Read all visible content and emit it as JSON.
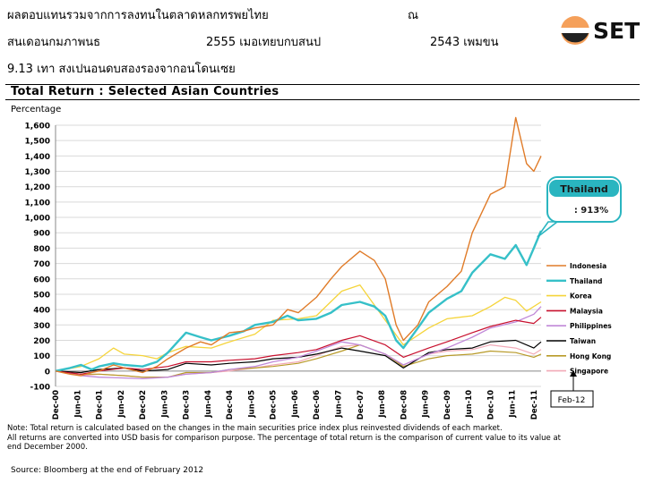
{
  "header": {
    "line1_left": "ผลตอบแทนรวมจากการลงทนในตลาดหลกทรพยไทย",
    "line1_right": "ณ",
    "line2_left": "สนเดอนกมภาพนธ",
    "line2_mid": "2555 เมอเทยบกบสนป",
    "line2_right": "2543 เพมขน",
    "line3": "9.13 เทา   สงเปนอนดบสองรองจากอนโดนเซย"
  },
  "logo": {
    "text": "SET",
    "color": "#f5a05a"
  },
  "section_title": "Total Return : Selected Asian Countries",
  "notes": {
    "line1": "Note: Total return is calculated based on the changes in the main securities price index plus reinvested dividends of each market.",
    "line2": "All returns are converted into USD basis for comparison purpose. The percentage of total return is the comparison of current value to its value at",
    "line3": "end December 2000.",
    "source": "Source: Bloomberg at the end of February 2012"
  },
  "chart_data": {
    "type": "line",
    "ylabel": "Percentage",
    "ylim": [
      -100,
      1600
    ],
    "yticks": [
      -100,
      0,
      100,
      200,
      300,
      400,
      500,
      600,
      700,
      800,
      900,
      1000,
      1100,
      1200,
      1300,
      1400,
      1500,
      1600
    ],
    "ytick_labels": [
      "-100",
      "0",
      "100",
      "200",
      "300",
      "400",
      "500",
      "600",
      "700",
      "800",
      "900",
      "1,000",
      "1,100",
      "1,200",
      "1,300",
      "1,400",
      "1,500",
      "1,600"
    ],
    "x_start": 2000.917,
    "x_end": 2012.083,
    "xtick_labels": [
      "Dec-00",
      "Jun-01",
      "Dec-01",
      "Jun-02",
      "Dec-02",
      "Jun-03",
      "Dec-03",
      "Jun-04",
      "Dec-04",
      "Jun-05",
      "Dec-05",
      "Jun-06",
      "Dec-06",
      "Jun-07",
      "Dec-07",
      "Jun-08",
      "Dec-08",
      "Jun-09",
      "Dec-09",
      "Jun-10",
      "Dec-10",
      "Jun-11",
      "Dec-11"
    ],
    "xtick_values": [
      2000.917,
      2001.417,
      2001.917,
      2002.417,
      2002.917,
      2003.417,
      2003.917,
      2004.417,
      2004.917,
      2005.417,
      2005.917,
      2006.417,
      2006.917,
      2007.417,
      2007.917,
      2008.417,
      2008.917,
      2009.417,
      2009.917,
      2010.417,
      2010.917,
      2011.417,
      2011.917
    ],
    "grid": true,
    "legend_position": "right",
    "series": [
      {
        "name": "Indonesia",
        "color": "#e07b28",
        "width": 1.4,
        "x": [
          2000.917,
          2001.25,
          2001.5,
          2001.75,
          2001.917,
          2002.25,
          2002.5,
          2002.917,
          2003.25,
          2003.5,
          2003.917,
          2004.25,
          2004.5,
          2004.917,
          2005.25,
          2005.5,
          2005.917,
          2006.25,
          2006.5,
          2006.917,
          2007.25,
          2007.5,
          2007.917,
          2008.25,
          2008.5,
          2008.75,
          2008.917,
          2009.25,
          2009.5,
          2009.917,
          2010.25,
          2010.5,
          2010.917,
          2011.25,
          2011.5,
          2011.75,
          2011.917,
          2012.083
        ],
        "y": [
          0,
          -20,
          -30,
          -10,
          0,
          40,
          20,
          -10,
          30,
          80,
          150,
          190,
          170,
          250,
          260,
          280,
          300,
          400,
          380,
          480,
          600,
          680,
          780,
          720,
          600,
          300,
          200,
          300,
          450,
          550,
          650,
          900,
          1150,
          1200,
          1650,
          1350,
          1300,
          1400
        ]
      },
      {
        "name": "Thailand",
        "color": "#36c0c8",
        "width": 2.4,
        "x": [
          2000.917,
          2001.25,
          2001.5,
          2001.75,
          2001.917,
          2002.25,
          2002.5,
          2002.917,
          2003.25,
          2003.5,
          2003.917,
          2004.25,
          2004.5,
          2004.917,
          2005.25,
          2005.5,
          2005.917,
          2006.25,
          2006.5,
          2006.917,
          2007.25,
          2007.5,
          2007.917,
          2008.25,
          2008.5,
          2008.75,
          2008.917,
          2009.25,
          2009.5,
          2009.917,
          2010.25,
          2010.5,
          2010.917,
          2011.25,
          2011.5,
          2011.75,
          2011.917,
          2012.083
        ],
        "y": [
          0,
          20,
          40,
          10,
          30,
          50,
          40,
          30,
          60,
          120,
          250,
          220,
          200,
          230,
          260,
          300,
          320,
          360,
          330,
          340,
          380,
          430,
          450,
          420,
          360,
          200,
          150,
          280,
          380,
          470,
          520,
          640,
          760,
          730,
          820,
          690,
          800,
          913
        ]
      },
      {
        "name": "Korea",
        "color": "#f5d43a",
        "width": 1.3,
        "x": [
          2000.917,
          2001.5,
          2001.917,
          2002.25,
          2002.5,
          2002.917,
          2003.25,
          2003.5,
          2003.917,
          2004.5,
          2004.917,
          2005.5,
          2005.917,
          2006.5,
          2006.917,
          2007.5,
          2007.917,
          2008.5,
          2008.917,
          2009.5,
          2009.917,
          2010.5,
          2010.917,
          2011.25,
          2011.5,
          2011.75,
          2012.083
        ],
        "y": [
          0,
          30,
          80,
          150,
          110,
          100,
          80,
          120,
          160,
          150,
          190,
          240,
          330,
          340,
          360,
          520,
          560,
          330,
          170,
          280,
          340,
          360,
          420,
          480,
          460,
          390,
          450
        ]
      },
      {
        "name": "Malaysia",
        "color": "#c8102e",
        "width": 1.2,
        "x": [
          2000.917,
          2001.5,
          2001.917,
          2002.5,
          2002.917,
          2003.5,
          2003.917,
          2004.5,
          2004.917,
          2005.5,
          2005.917,
          2006.5,
          2006.917,
          2007.5,
          2007.917,
          2008.5,
          2008.917,
          2009.5,
          2009.917,
          2010.5,
          2010.917,
          2011.5,
          2011.917,
          2012.083
        ],
        "y": [
          0,
          -20,
          0,
          20,
          10,
          30,
          60,
          60,
          70,
          80,
          100,
          120,
          140,
          200,
          230,
          170,
          90,
          150,
          190,
          250,
          290,
          330,
          310,
          350
        ]
      },
      {
        "name": "Philippines",
        "color": "#c088d8",
        "width": 1.3,
        "x": [
          2000.917,
          2001.5,
          2001.917,
          2002.5,
          2002.917,
          2003.5,
          2003.917,
          2004.5,
          2004.917,
          2005.5,
          2005.917,
          2006.5,
          2006.917,
          2007.5,
          2007.917,
          2008.5,
          2008.917,
          2009.5,
          2009.917,
          2010.5,
          2010.917,
          2011.5,
          2011.917,
          2012.083
        ],
        "y": [
          0,
          -30,
          -40,
          -45,
          -50,
          -40,
          -20,
          -10,
          10,
          30,
          60,
          90,
          130,
          190,
          170,
          110,
          40,
          110,
          150,
          220,
          280,
          320,
          370,
          420
        ]
      },
      {
        "name": "Taiwan",
        "color": "#000000",
        "width": 1.2,
        "x": [
          2000.917,
          2001.5,
          2001.917,
          2002.5,
          2002.917,
          2003.5,
          2003.917,
          2004.5,
          2004.917,
          2005.5,
          2005.917,
          2006.5,
          2006.917,
          2007.5,
          2007.917,
          2008.5,
          2008.917,
          2009.5,
          2009.917,
          2010.5,
          2010.917,
          2011.5,
          2011.917,
          2012.083
        ],
        "y": [
          0,
          -10,
          10,
          20,
          0,
          10,
          50,
          40,
          50,
          60,
          80,
          90,
          110,
          150,
          130,
          100,
          20,
          120,
          140,
          150,
          190,
          200,
          150,
          190
        ]
      },
      {
        "name": "Hong Kong",
        "color": "#b89a28",
        "width": 1.2,
        "x": [
          2000.917,
          2001.5,
          2001.917,
          2002.5,
          2002.917,
          2003.5,
          2003.917,
          2004.5,
          2004.917,
          2005.5,
          2005.917,
          2006.5,
          2006.917,
          2007.5,
          2007.917,
          2008.5,
          2008.917,
          2009.5,
          2009.917,
          2010.5,
          2010.917,
          2011.5,
          2011.917,
          2012.083
        ],
        "y": [
          0,
          -20,
          -20,
          -30,
          -40,
          -40,
          -10,
          -10,
          10,
          20,
          30,
          50,
          80,
          130,
          170,
          110,
          30,
          80,
          100,
          110,
          130,
          120,
          90,
          110
        ]
      },
      {
        "name": "Singapore",
        "color": "#f2aab8",
        "width": 1.2,
        "x": [
          2000.917,
          2001.5,
          2001.917,
          2002.5,
          2002.917,
          2003.5,
          2003.917,
          2004.5,
          2004.917,
          2005.5,
          2005.917,
          2006.5,
          2006.917,
          2007.5,
          2007.917,
          2008.5,
          2008.917,
          2009.5,
          2009.917,
          2010.5,
          2010.917,
          2011.5,
          2011.917,
          2012.083
        ],
        "y": [
          0,
          -30,
          -20,
          -30,
          -40,
          -40,
          -20,
          -10,
          0,
          20,
          40,
          60,
          100,
          160,
          170,
          110,
          40,
          110,
          130,
          140,
          170,
          150,
          110,
          140
        ]
      }
    ],
    "legend": [
      "Indonesia",
      "Thailand",
      "Korea",
      "Malaysia",
      "Philippines",
      "Taiwan",
      "Hong Kong",
      "Singapore"
    ],
    "annotations": {
      "callout_title": "Thailand",
      "callout_value": ": 913%",
      "callout_color": "#2ab5c0",
      "end_label": "Feb-12"
    }
  }
}
